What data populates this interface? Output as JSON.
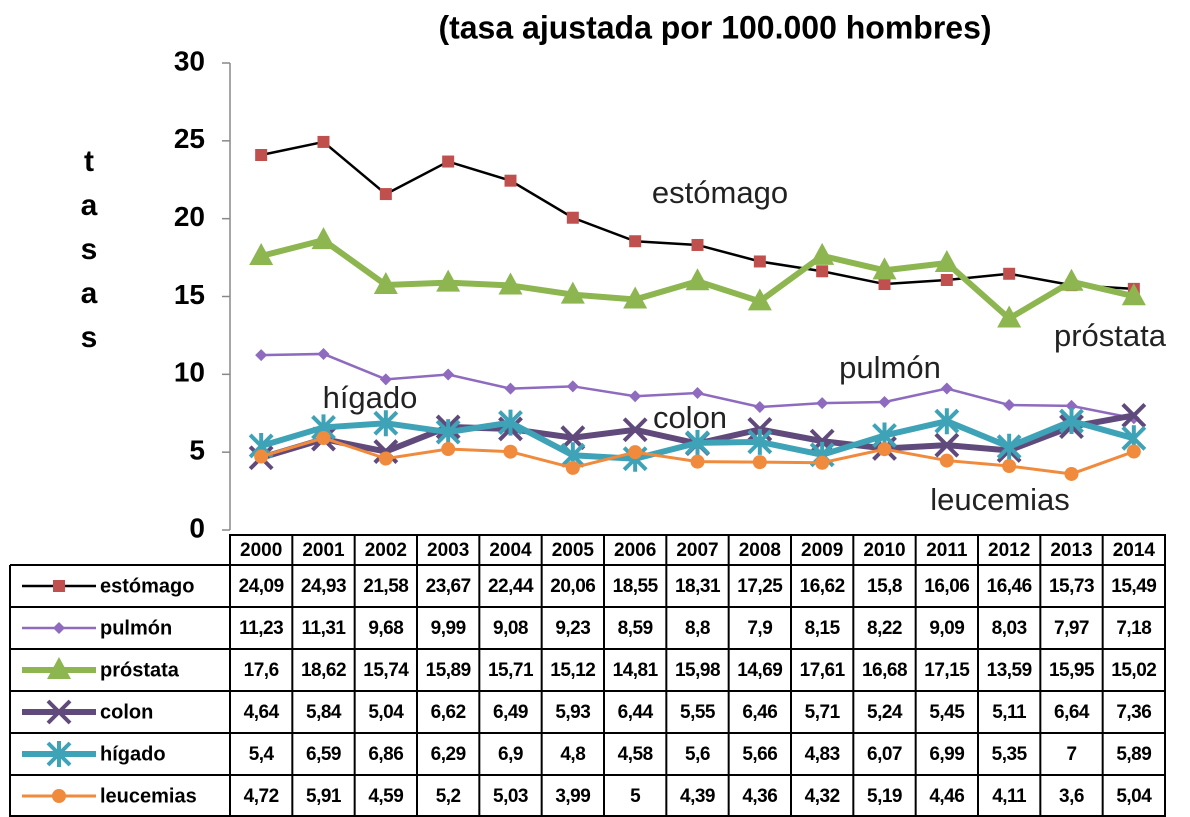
{
  "chart_data": {
    "type": "line",
    "title": "(tasa ajustada por 100.000 hombres)",
    "y_label": "tasas",
    "categories": [
      "2000",
      "2001",
      "2002",
      "2003",
      "2004",
      "2005",
      "2006",
      "2007",
      "2008",
      "2009",
      "2010",
      "2011",
      "2012",
      "2013",
      "2014"
    ],
    "ylim": [
      0,
      30
    ],
    "yticks": [
      0,
      5,
      10,
      15,
      20,
      25,
      30
    ],
    "series": [
      {
        "name": "estómago",
        "color": "#000000",
        "marker_color": "#c0504d",
        "marker": "square",
        "values": [
          24.09,
          24.93,
          21.58,
          23.67,
          22.44,
          20.06,
          18.55,
          18.31,
          17.25,
          16.62,
          15.8,
          16.06,
          16.46,
          15.73,
          15.49
        ],
        "value_labels": [
          "24,09",
          "24,93",
          "21,58",
          "23,67",
          "22,44",
          "20,06",
          "18,55",
          "18,31",
          "17,25",
          "16,62",
          "15,8",
          "16,06",
          "16,46",
          "15,73",
          "15,49"
        ]
      },
      {
        "name": "pulmón",
        "color": "#8e6bbf",
        "marker_color": "#8e6bbf",
        "marker": "diamond",
        "values": [
          11.23,
          11.31,
          9.68,
          9.99,
          9.08,
          9.23,
          8.59,
          8.8,
          7.9,
          8.15,
          8.22,
          9.09,
          8.03,
          7.97,
          7.18
        ],
        "value_labels": [
          "11,23",
          "11,31",
          "9,68",
          "9,99",
          "9,08",
          "9,23",
          "8,59",
          "8,8",
          "7,9",
          "8,15",
          "8,22",
          "9,09",
          "8,03",
          "7,97",
          "7,18"
        ]
      },
      {
        "name": "próstata",
        "color": "#8db650",
        "marker_color": "#8db650",
        "marker": "triangle",
        "values": [
          17.6,
          18.62,
          15.74,
          15.89,
          15.71,
          15.12,
          14.81,
          15.98,
          14.69,
          17.61,
          16.68,
          17.15,
          13.59,
          15.95,
          15.02
        ],
        "value_labels": [
          "17,6",
          "18,62",
          "15,74",
          "15,89",
          "15,71",
          "15,12",
          "14,81",
          "15,98",
          "14,69",
          "17,61",
          "16,68",
          "17,15",
          "13,59",
          "15,95",
          "15,02"
        ]
      },
      {
        "name": "colon",
        "color": "#604a7b",
        "marker_color": "#604a7b",
        "marker": "x",
        "values": [
          4.64,
          5.84,
          5.04,
          6.62,
          6.49,
          5.93,
          6.44,
          5.55,
          6.46,
          5.71,
          5.24,
          5.45,
          5.11,
          6.64,
          7.36
        ],
        "value_labels": [
          "4,64",
          "5,84",
          "5,04",
          "6,62",
          "6,49",
          "5,93",
          "6,44",
          "5,55",
          "6,46",
          "5,71",
          "5,24",
          "5,45",
          "5,11",
          "6,64",
          "7,36"
        ]
      },
      {
        "name": "hígado",
        "color": "#3fa3b8",
        "marker_color": "#3fa3b8",
        "marker": "asterisk",
        "values": [
          5.4,
          6.59,
          6.86,
          6.29,
          6.9,
          4.8,
          4.58,
          5.6,
          5.66,
          4.83,
          6.07,
          6.99,
          5.35,
          7,
          5.89
        ],
        "value_labels": [
          "5,4",
          "6,59",
          "6,86",
          "6,29",
          "6,9",
          "4,8",
          "4,58",
          "5,6",
          "5,66",
          "4,83",
          "6,07",
          "6,99",
          "5,35",
          "7",
          "5,89"
        ]
      },
      {
        "name": "leucemias",
        "color": "#f08a3c",
        "marker_color": "#f08a3c",
        "marker": "circle",
        "values": [
          4.72,
          5.91,
          4.59,
          5.2,
          5.03,
          3.99,
          5,
          4.39,
          4.36,
          4.32,
          5.19,
          4.46,
          4.11,
          3.6,
          5.04
        ],
        "value_labels": [
          "4,72",
          "5,91",
          "4,59",
          "5,2",
          "5,03",
          "3,99",
          "5",
          "4,39",
          "4,36",
          "4,32",
          "5,19",
          "4,46",
          "4,11",
          "3,6",
          "5,04"
        ]
      }
    ],
    "table_labels": [
      "estómago",
      "pulmón",
      "próstata",
      "colon",
      "hígado",
      "leucemias"
    ],
    "annotations": [
      "estómago",
      "pulmón",
      "próstata",
      "hígado",
      "colon",
      "leucemias"
    ]
  }
}
